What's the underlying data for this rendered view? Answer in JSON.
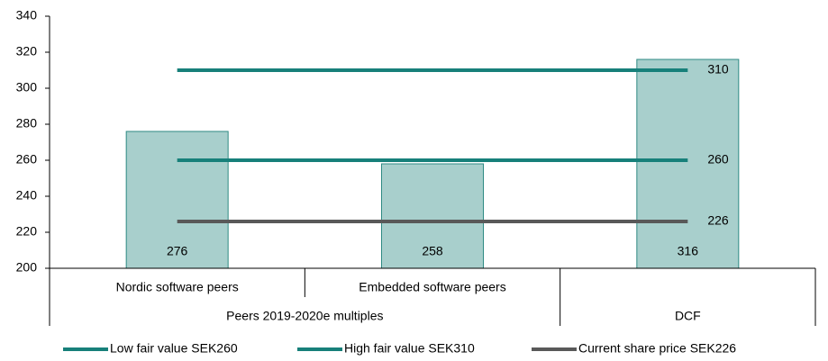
{
  "chart_data": {
    "type": "bar",
    "categories": [
      "Nordic software peers",
      "Embedded software peers",
      null
    ],
    "groups": [
      {
        "label": "Peers 2019-2020e multiples",
        "span": 2
      },
      {
        "label": "DCF",
        "span": 1
      }
    ],
    "values": [
      276,
      258,
      316
    ],
    "color": "#a8cfcc",
    "edge_color": "#2e8a83",
    "ylim": [
      200,
      340
    ],
    "yticks": [
      200,
      220,
      240,
      260,
      280,
      300,
      320,
      340
    ],
    "lines": [
      {
        "name": "Low fair value SEK260",
        "color": "#17807a",
        "value": 260
      },
      {
        "name": "High fair value SEK310",
        "color": "#17807a",
        "value": 310
      },
      {
        "name": "Current share price SEK226",
        "color": "#595959",
        "value": 226
      }
    ],
    "grid": false
  }
}
